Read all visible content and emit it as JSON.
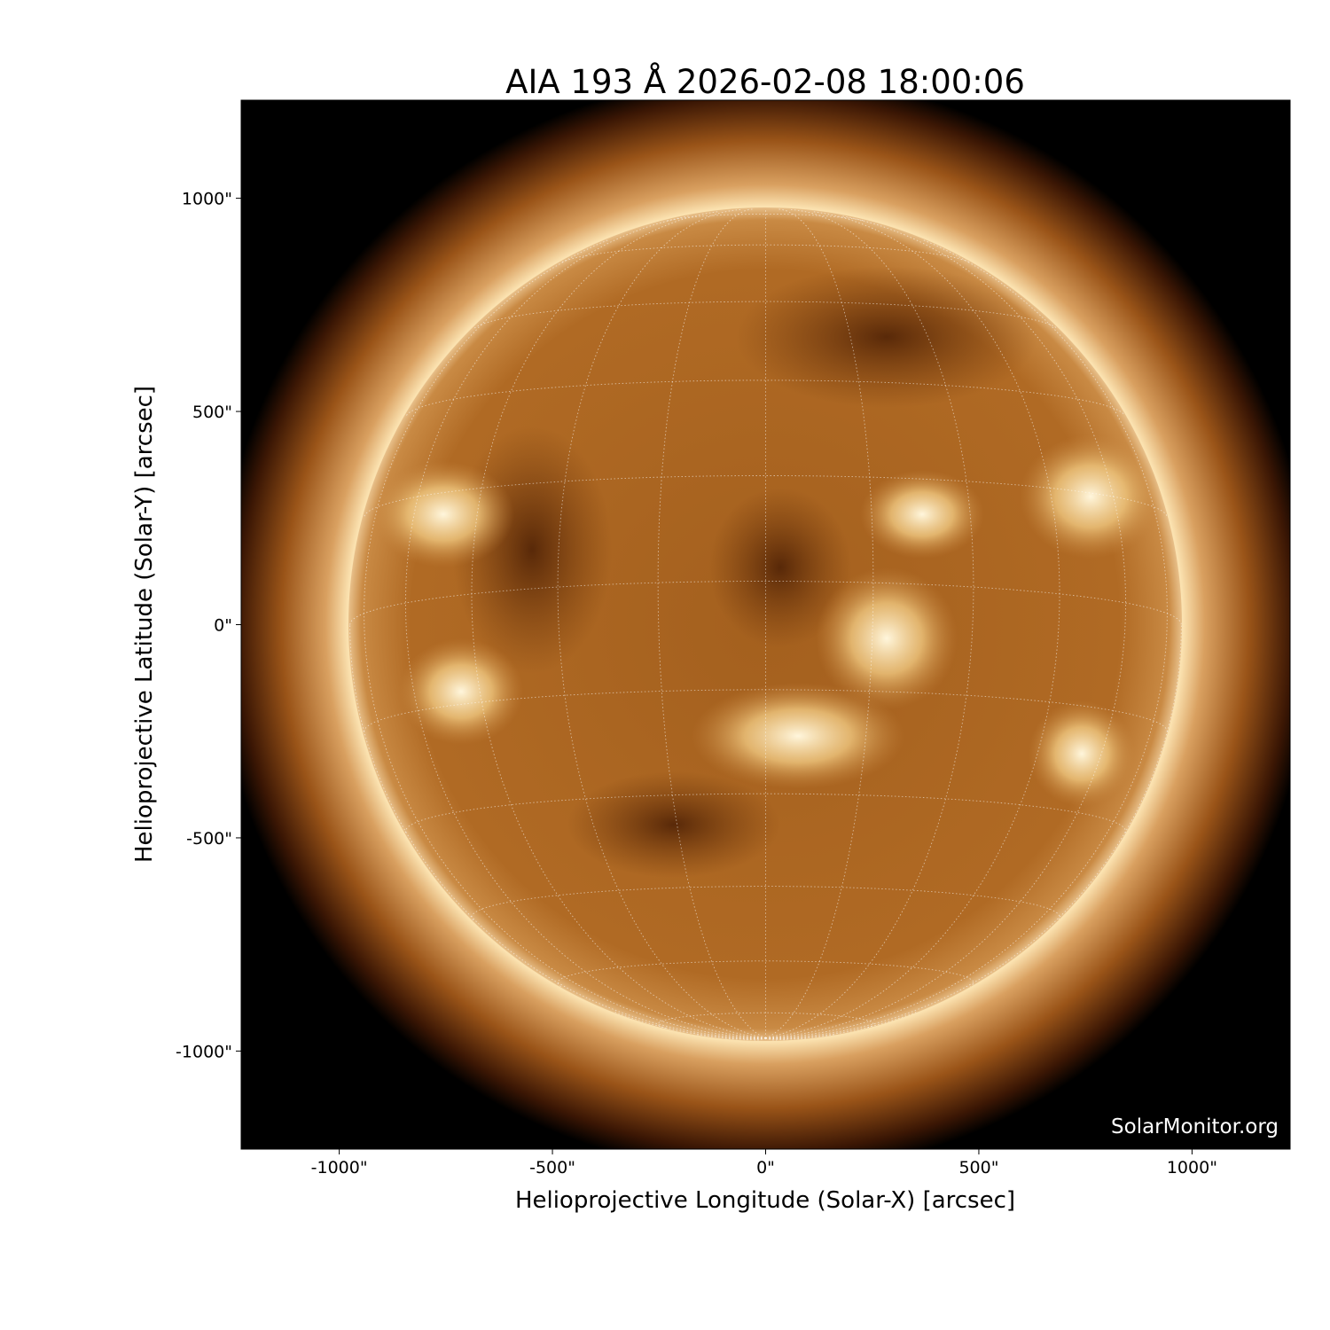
{
  "title": "AIA 193 Å 2026-02-08 18:00:06",
  "xlabel": "Helioprojective Longitude (Solar-X) [arcsec]",
  "ylabel": "Helioprojective Latitude (Solar-Y) [arcsec]",
  "watermark": "SolarMonitor.org",
  "x_ticks": [
    "-1000\"",
    "-500\"",
    "0\"",
    "500\"",
    "1000\""
  ],
  "y_ticks": [
    "1000\"",
    "500\"",
    "0\"",
    "-500\"",
    "-1000\""
  ],
  "x_tick_values": [
    -1000,
    -500,
    0,
    500,
    1000
  ],
  "y_tick_values": [
    1000,
    500,
    0,
    -500,
    -1000
  ],
  "x_range_arcsec": [
    -1230,
    1230
  ],
  "y_range_arcsec": [
    -1230,
    1230
  ],
  "solar_radius_arcsec": 975,
  "grid_spacing_deg": 15,
  "colors": {
    "corona_bright": "#fff4d6",
    "disk": "#b06a22",
    "disk_dark": "#6a3208",
    "background": "#000000"
  }
}
